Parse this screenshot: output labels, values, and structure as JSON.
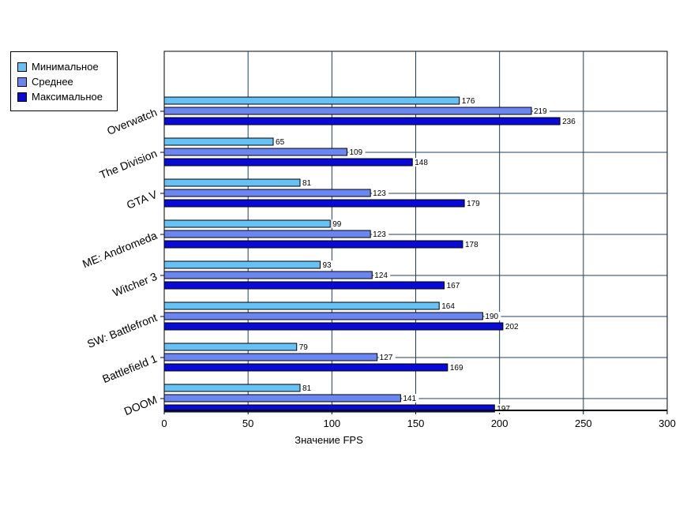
{
  "chart_data": {
    "type": "bar",
    "orientation": "horizontal",
    "title": "",
    "xlabel": "Значение FPS",
    "ylabel": "",
    "xlim": [
      0,
      300
    ],
    "xticks": [
      "0",
      "50",
      "100",
      "150",
      "200",
      "250",
      "300"
    ],
    "grid": true,
    "legend_position": "top-left",
    "categories": [
      "Overwatch",
      "The Division",
      "GTA V",
      "ME: Andromeda",
      "Witcher 3",
      "SW: Battlefront",
      "Battlefield 1",
      "DOOM"
    ],
    "series": [
      {
        "name": "Минимальное",
        "color": "#66C2F5",
        "values": [
          176,
          65,
          81,
          99,
          93,
          164,
          79,
          81
        ]
      },
      {
        "name": "Среднее",
        "color": "#6B86F0",
        "values": [
          219,
          109,
          123,
          123,
          124,
          190,
          127,
          141
        ]
      },
      {
        "name": "Максимальное",
        "color": "#0A0AD6",
        "values": [
          236,
          148,
          179,
          178,
          167,
          202,
          169,
          197
        ]
      }
    ]
  }
}
